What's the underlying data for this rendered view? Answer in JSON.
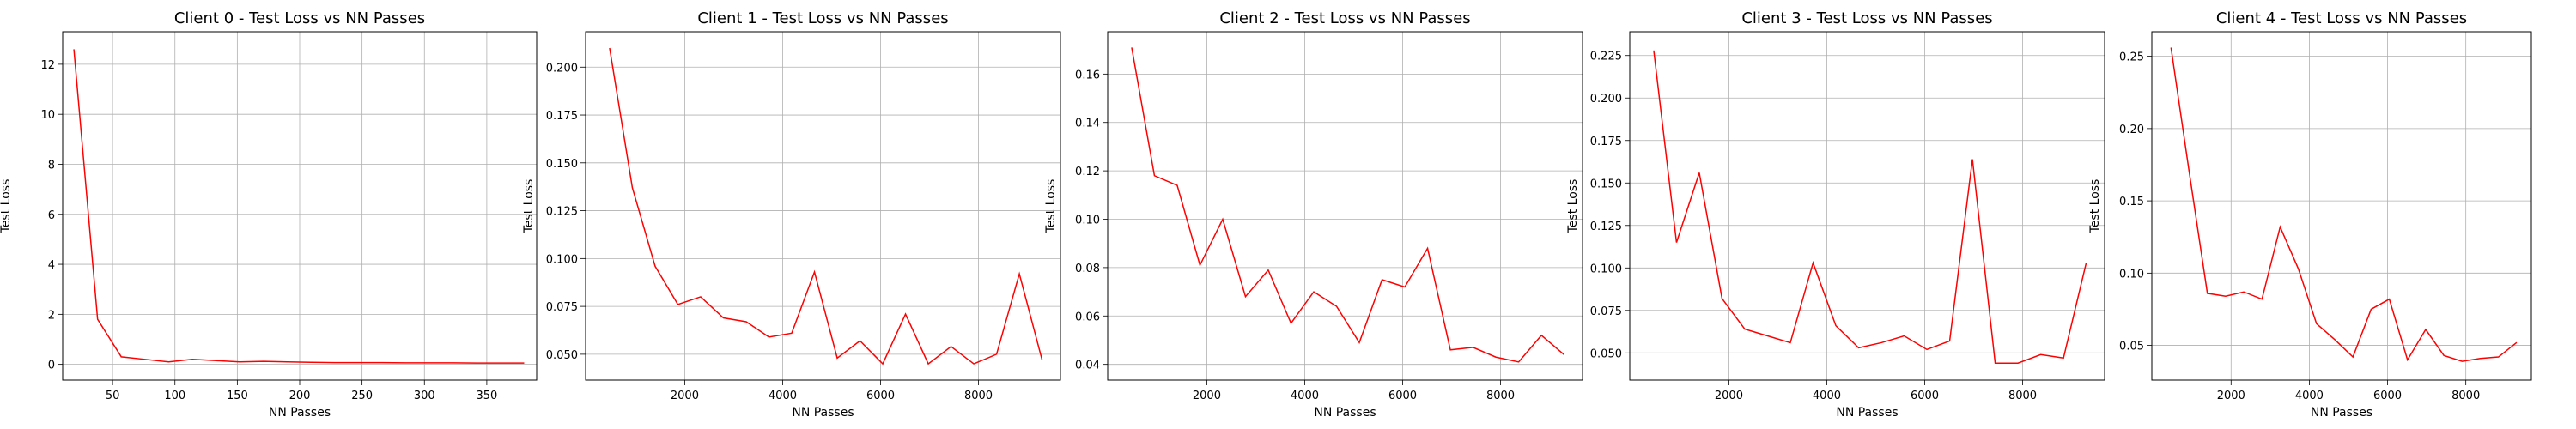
{
  "chart_data": [
    {
      "type": "line",
      "title": "Client 0 - Test Loss vs NN Passes",
      "xlabel": "NN Passes",
      "ylabel": "Test Loss",
      "xlim": [
        10,
        390
      ],
      "ylim": [
        -0.63,
        13.3
      ],
      "xticks": [
        50,
        100,
        150,
        200,
        250,
        300,
        350
      ],
      "yticks": [
        0,
        2,
        4,
        6,
        8,
        10,
        12
      ],
      "ytick_labels": [
        "0",
        "2",
        "4",
        "6",
        "8",
        "10",
        "12"
      ],
      "grid": true,
      "color": "#ff0000",
      "x": [
        19,
        38,
        57,
        76,
        95,
        114,
        133,
        152,
        171,
        190,
        209,
        228,
        247,
        266,
        285,
        304,
        323,
        342,
        361,
        380
      ],
      "y": [
        12.6,
        1.8,
        0.3,
        0.2,
        0.1,
        0.2,
        0.15,
        0.1,
        0.12,
        0.1,
        0.08,
        0.07,
        0.07,
        0.07,
        0.06,
        0.06,
        0.06,
        0.05,
        0.05,
        0.05
      ]
    },
    {
      "type": "line",
      "title": "Client 1 - Test Loss vs NN Passes",
      "xlabel": "NN Passes",
      "ylabel": "Test Loss",
      "xlim": [
        -25,
        9675
      ],
      "ylim": [
        0.0365,
        0.2185
      ],
      "xticks": [
        2000,
        4000,
        6000,
        8000
      ],
      "yticks": [
        0.05,
        0.075,
        0.1,
        0.125,
        0.15,
        0.175,
        0.2
      ],
      "ytick_labels": [
        "0.050",
        "0.075",
        "0.100",
        "0.125",
        "0.150",
        "0.175",
        "0.200"
      ],
      "grid": true,
      "color": "#ff0000",
      "x": [
        465,
        930,
        1395,
        1860,
        2325,
        2790,
        3255,
        3720,
        4185,
        4650,
        5115,
        5580,
        6045,
        6510,
        6975,
        7440,
        7905,
        8370,
        8835,
        9300
      ],
      "y": [
        0.21,
        0.137,
        0.096,
        0.076,
        0.08,
        0.069,
        0.067,
        0.059,
        0.061,
        0.093,
        0.048,
        0.057,
        0.045,
        0.071,
        0.045,
        0.054,
        0.045,
        0.05,
        0.092,
        0.047
      ]
    },
    {
      "type": "line",
      "title": "Client 2 - Test Loss vs NN Passes",
      "xlabel": "NN Passes",
      "ylabel": "Test Loss",
      "xlim": [
        -25,
        9675
      ],
      "ylim": [
        0.0335,
        0.1775
      ],
      "xticks": [
        2000,
        4000,
        6000,
        8000
      ],
      "yticks": [
        0.04,
        0.06,
        0.08,
        0.1,
        0.12,
        0.14,
        0.16
      ],
      "ytick_labels": [
        "0.04",
        "0.06",
        "0.08",
        "0.10",
        "0.12",
        "0.14",
        "0.16"
      ],
      "grid": true,
      "color": "#ff0000",
      "x": [
        465,
        930,
        1395,
        1860,
        2325,
        2790,
        3255,
        3720,
        4185,
        4650,
        5115,
        5580,
        6045,
        6510,
        6975,
        7440,
        7905,
        8370,
        8835,
        9300
      ],
      "y": [
        0.171,
        0.118,
        0.114,
        0.081,
        0.1,
        0.068,
        0.079,
        0.057,
        0.07,
        0.064,
        0.049,
        0.075,
        0.072,
        0.088,
        0.046,
        0.047,
        0.043,
        0.041,
        0.052,
        0.044
      ]
    },
    {
      "type": "line",
      "title": "Client 3 - Test Loss vs NN Passes",
      "xlabel": "NN Passes",
      "ylabel": "Test Loss",
      "xlim": [
        -25,
        9675
      ],
      "ylim": [
        0.034,
        0.239
      ],
      "xticks": [
        2000,
        4000,
        6000,
        8000
      ],
      "yticks": [
        0.05,
        0.075,
        0.1,
        0.125,
        0.15,
        0.175,
        0.2,
        0.225
      ],
      "ytick_labels": [
        "0.050",
        "0.075",
        "0.100",
        "0.125",
        "0.150",
        "0.175",
        "0.200",
        "0.225"
      ],
      "grid": true,
      "color": "#ff0000",
      "x": [
        465,
        930,
        1395,
        1860,
        2325,
        2790,
        3255,
        3720,
        4185,
        4650,
        5115,
        5580,
        6045,
        6510,
        6975,
        7440,
        7905,
        8370,
        8835,
        9300
      ],
      "y": [
        0.228,
        0.115,
        0.156,
        0.082,
        0.064,
        0.06,
        0.056,
        0.103,
        0.066,
        0.053,
        0.056,
        0.06,
        0.052,
        0.057,
        0.164,
        0.044,
        0.044,
        0.049,
        0.047,
        0.103
      ]
    },
    {
      "type": "line",
      "title": "Client 4 - Test Loss vs NN Passes",
      "xlabel": "NN Passes",
      "ylabel": "Test Loss",
      "xlim": [
        -25,
        9675
      ],
      "ylim": [
        0.026,
        0.267
      ],
      "xticks": [
        2000,
        4000,
        6000,
        8000
      ],
      "yticks": [
        0.05,
        0.1,
        0.15,
        0.2,
        0.25
      ],
      "ytick_labels": [
        "0.05",
        "0.10",
        "0.15",
        "0.20",
        "0.25"
      ],
      "grid": true,
      "color": "#ff0000",
      "x": [
        465,
        930,
        1395,
        1860,
        2325,
        2790,
        3255,
        3720,
        4185,
        4650,
        5115,
        5580,
        6045,
        6510,
        6975,
        7440,
        7905,
        8370,
        8835,
        9300
      ],
      "y": [
        0.256,
        0.17,
        0.086,
        0.084,
        0.087,
        0.082,
        0.132,
        0.103,
        0.065,
        0.054,
        0.042,
        0.075,
        0.082,
        0.04,
        0.061,
        0.043,
        0.039,
        0.041,
        0.042,
        0.052
      ]
    }
  ]
}
